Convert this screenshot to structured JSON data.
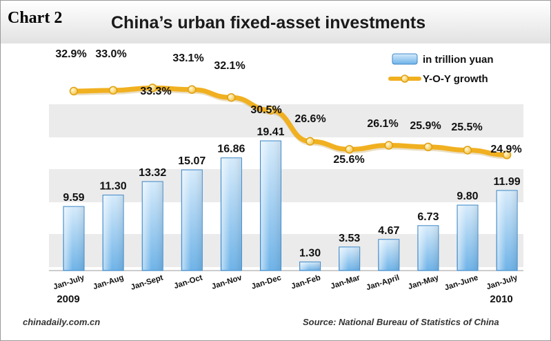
{
  "chart_label": "Chart 2",
  "footer": {
    "source_site": "chinadaily.com.cn",
    "source_note": "Source: National Bureau of Statistics of China"
  },
  "colors": {
    "bar_top": "#d6ebfb",
    "bar_bottom": "#6eb3e8",
    "bar_stroke": "#3d86c6",
    "line": "#f0b020",
    "band": "#ebebeb"
  },
  "chart_data": {
    "type": "bar",
    "title": "China’s urban fixed-asset investments",
    "categories": [
      "Jan-July",
      "Jan-Aug",
      "Jan-Sept",
      "Jan-Oct",
      "Jan-Nov",
      "Jan-Dec",
      "Jan-Feb",
      "Jan-Mar",
      "Jan-April",
      "Jan-May",
      "Jan-June",
      "Jan-July"
    ],
    "year_labels": [
      {
        "text": "2009",
        "index": 0
      },
      {
        "text": "2010",
        "index": 11
      }
    ],
    "series": [
      {
        "name": "in trillion yuan",
        "type": "bar",
        "values": [
          9.59,
          11.3,
          13.32,
          15.07,
          16.86,
          19.41,
          1.3,
          3.53,
          4.67,
          6.73,
          9.8,
          11.99
        ],
        "labels": [
          "9.59",
          "11.30",
          "13.32",
          "15.07",
          "16.86",
          "19.41",
          "1.30",
          "3.53",
          "4.67",
          "6.73",
          "9.80",
          "11.99"
        ]
      },
      {
        "name": "Y-O-Y growth",
        "type": "line",
        "unit": "%",
        "values": [
          32.9,
          33.0,
          33.3,
          33.1,
          32.1,
          30.5,
          26.6,
          25.6,
          26.1,
          25.9,
          25.5,
          24.9
        ],
        "labels": [
          "32.9%",
          "33.0%",
          "33.3%",
          "33.1%",
          "32.1%",
          "30.5%",
          "26.6%",
          "25.6%",
          "26.1%",
          "25.9%",
          "25.5%",
          "24.9%"
        ]
      }
    ],
    "legend_position": "top-right",
    "xlabel": "",
    "ylabel": ""
  }
}
